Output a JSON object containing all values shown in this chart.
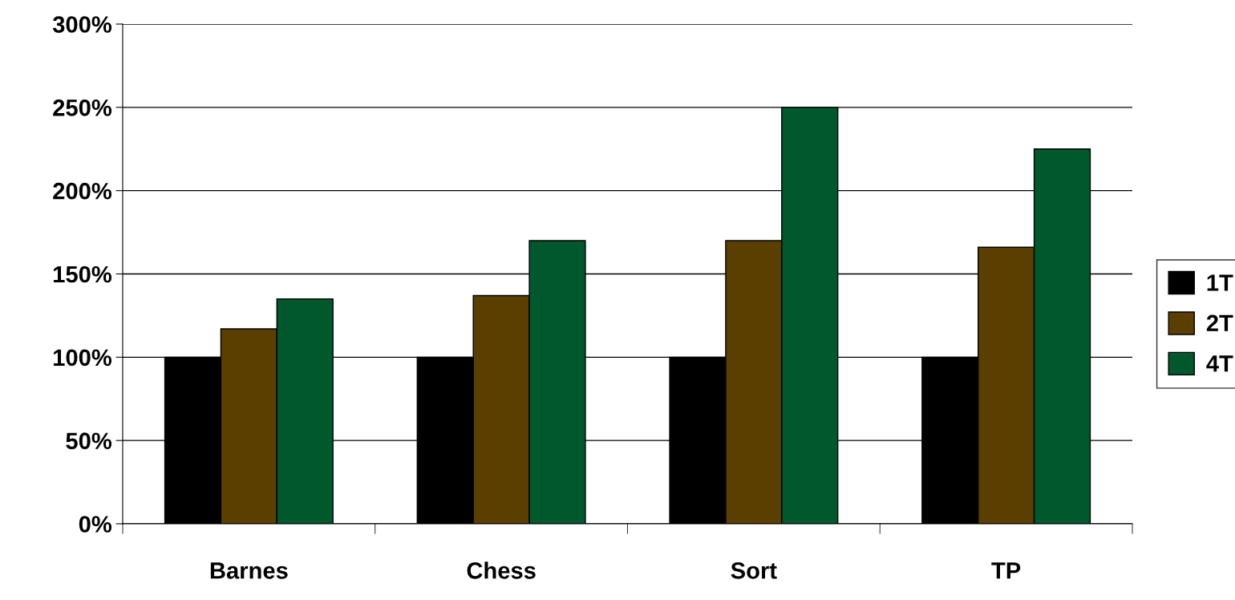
{
  "chart_data": {
    "type": "bar",
    "categories": [
      "Barnes",
      "Chess",
      "Sort",
      "TP"
    ],
    "series": [
      {
        "name": "1T",
        "color": "#000000",
        "values": [
          100,
          100,
          100,
          100
        ]
      },
      {
        "name": "2T",
        "color": "#5a3f00",
        "values": [
          117,
          137,
          170,
          166
        ]
      },
      {
        "name": "4T",
        "color": "#00582c",
        "values": [
          135,
          170,
          250,
          225
        ]
      }
    ],
    "ylim": [
      0,
      300
    ],
    "yticks": [
      {
        "value": 0,
        "label": "0%"
      },
      {
        "value": 50,
        "label": "50%"
      },
      {
        "value": 100,
        "label": "100%"
      },
      {
        "value": 150,
        "label": "150%"
      },
      {
        "value": 200,
        "label": "200%"
      },
      {
        "value": 250,
        "label": "250%"
      },
      {
        "value": 300,
        "label": "300%"
      }
    ],
    "grid": "y",
    "legend": "right"
  }
}
